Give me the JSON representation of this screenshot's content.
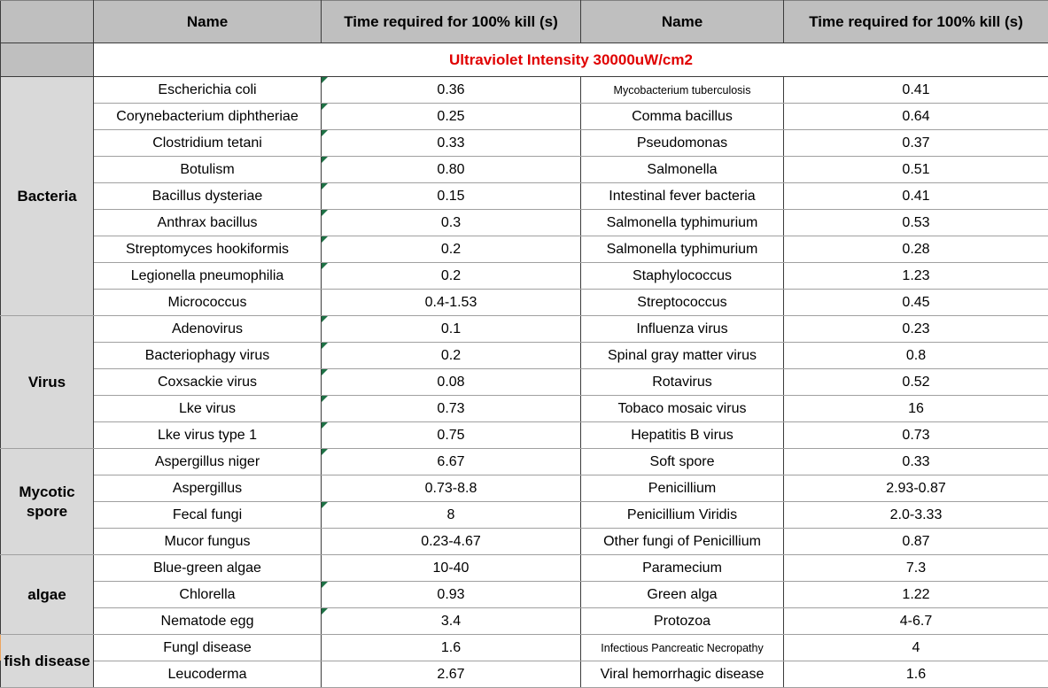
{
  "table": {
    "header": {
      "name_left": "Name",
      "time_left": "Time required for 100% kill (s)",
      "name_right": "Name",
      "time_right": "Time required for 100% kill (s)"
    },
    "banner": {
      "text": "Ultraviolet Intensity 30000uW/cm2"
    },
    "sections": [
      {
        "category": "Bacteria",
        "rows": [
          {
            "left_name": "Escherichia coli",
            "left_time": "0.36",
            "left_flag": true,
            "right_name": "Mycobacterium tuberculosis",
            "right_name_small": true,
            "right_time": "0.41"
          },
          {
            "left_name": "Corynebacterium diphtheriae",
            "left_time": "0.25",
            "left_flag": true,
            "right_name": "Comma bacillus",
            "right_time": "0.64"
          },
          {
            "left_name": "Clostridium tetani",
            "left_time": "0.33",
            "left_flag": true,
            "right_name": "Pseudomonas",
            "right_time": "0.37"
          },
          {
            "left_name": "Botulism",
            "left_time": "0.80",
            "left_flag": true,
            "right_name": "Salmonella",
            "right_time": "0.51"
          },
          {
            "left_name": "Bacillus dysteriae",
            "left_time": "0.15",
            "left_flag": true,
            "right_name": "Intestinal fever bacteria",
            "right_time": "0.41"
          },
          {
            "left_name": "Anthrax bacillus",
            "left_time": "0.3",
            "left_flag": true,
            "right_name": "Salmonella typhimurium",
            "right_time": "0.53"
          },
          {
            "left_name": "Streptomyces hookiformis",
            "left_time": "0.2",
            "left_flag": true,
            "right_name": "Salmonella typhimurium",
            "right_time": "0.28"
          },
          {
            "left_name": "Legionella pneumophilia",
            "left_time": "0.2",
            "left_flag": true,
            "right_name": "Staphylococcus",
            "right_time": "1.23"
          },
          {
            "left_name": "Micrococcus",
            "left_time": "0.4-1.53",
            "left_flag": false,
            "right_name": "Streptococcus",
            "right_time": "0.45"
          }
        ]
      },
      {
        "category": "Virus",
        "rows": [
          {
            "left_name": "Adenovirus",
            "left_time": "0.1",
            "left_flag": true,
            "right_name": "Influenza virus",
            "right_time": "0.23"
          },
          {
            "left_name": "Bacteriophagy virus",
            "left_time": "0.2",
            "left_flag": true,
            "right_name": "Spinal gray matter virus",
            "right_time": "0.8"
          },
          {
            "left_name": "Coxsackie virus",
            "left_time": "0.08",
            "left_flag": true,
            "right_name": "Rotavirus",
            "right_time": "0.52"
          },
          {
            "left_name": "Lke virus",
            "left_time": "0.73",
            "left_flag": true,
            "right_name": "Tobaco mosaic virus",
            "right_time": "16"
          },
          {
            "left_name": "Lke virus type 1",
            "left_time": "0.75",
            "left_flag": true,
            "right_name": "Hepatitis B virus",
            "right_time": "0.73"
          }
        ]
      },
      {
        "category": "Mycotic spore",
        "rows": [
          {
            "left_name": "Aspergillus niger",
            "left_time": "6.67",
            "left_flag": true,
            "right_name": "Soft spore",
            "right_time": "0.33"
          },
          {
            "left_name": "Aspergillus",
            "left_time": "0.73-8.8",
            "left_flag": false,
            "right_name": "Penicillium",
            "right_time": "2.93-0.87"
          },
          {
            "left_name": "Fecal fungi",
            "left_time": "8",
            "left_flag": true,
            "right_name": "Penicillium Viridis",
            "right_time": "2.0-3.33"
          },
          {
            "left_name": "Mucor fungus",
            "left_time": "0.23-4.67",
            "left_flag": false,
            "right_name": "Other fungi of Penicillium",
            "right_time": "0.87"
          }
        ]
      },
      {
        "category": "algae",
        "rows": [
          {
            "left_name": "Blue-green algae",
            "left_time": "10-40",
            "left_flag": false,
            "right_name": "Paramecium",
            "right_time": "7.3"
          },
          {
            "left_name": "Chlorella",
            "left_time": "0.93",
            "left_flag": true,
            "right_name": "Green alga",
            "right_time": "1.22"
          },
          {
            "left_name": "Nematode egg",
            "left_time": "3.4",
            "left_flag": true,
            "right_name": "Protozoa",
            "right_time": "4-6.7"
          }
        ]
      },
      {
        "category": "fish disease",
        "rows": [
          {
            "left_name": "Fungl disease",
            "left_time": "1.6",
            "left_flag": false,
            "right_name": "Infectious Pancreatic Necropathy",
            "right_name_small": true,
            "right_time": "4"
          },
          {
            "left_name": "Leucoderma",
            "left_time": "2.67",
            "left_flag": false,
            "right_name": "Viral hemorrhagic disease",
            "right_time": "1.6"
          }
        ]
      }
    ]
  },
  "colors": {
    "header_bg": "#bfbfbf",
    "category_bg": "#d9d9d9",
    "banner_text": "#e00000",
    "flag_green": "#1e7145",
    "edge_strip_orange": "#eda55f"
  }
}
